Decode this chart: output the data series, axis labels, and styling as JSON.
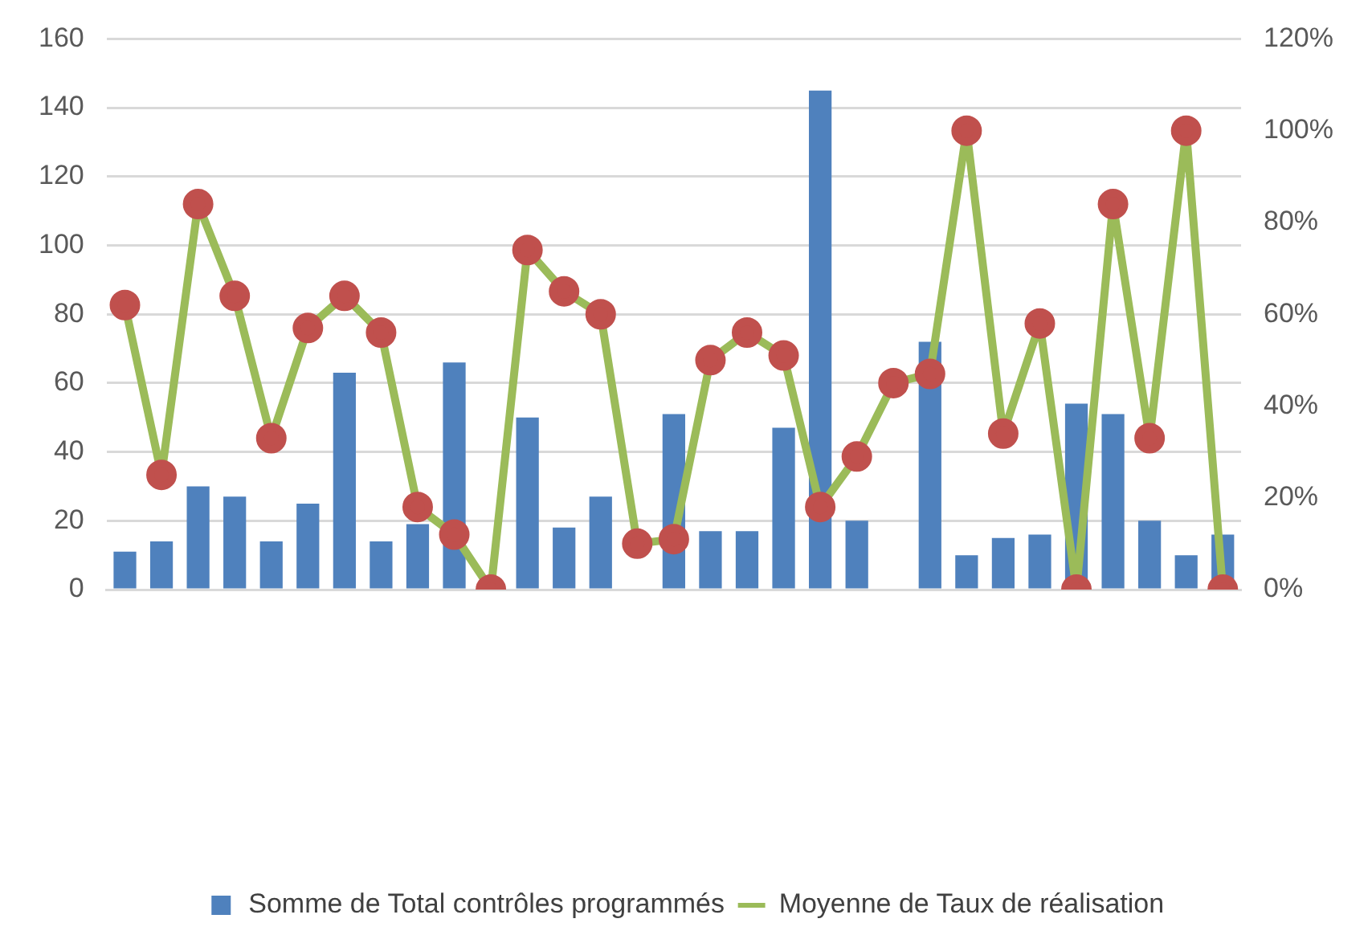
{
  "chart_data": {
    "type": "bar",
    "categories": [
      null,
      null,
      null,
      null,
      null,
      null,
      null,
      null,
      null,
      null,
      null,
      null,
      null,
      null,
      null,
      null,
      null,
      null,
      null,
      null,
      null,
      null,
      null,
      null,
      null,
      null,
      null,
      null,
      null,
      null,
      null
    ],
    "series": [
      {
        "name": "Somme de Total contrôles programmés",
        "color": "#4f81bd",
        "values": [
          11,
          14,
          30,
          27,
          14,
          25,
          63,
          14,
          19,
          66,
          0,
          50,
          18,
          27,
          null,
          51,
          17,
          17,
          47,
          145,
          20,
          null,
          72,
          10,
          15,
          16,
          54,
          51,
          20,
          10,
          16
        ]
      },
      {
        "name": "Moyenne de Taux de réalisation",
        "type": "line",
        "axis": "y2",
        "color": "#9bbb59",
        "colors": [
          "#c0504d",
          "#c0504d",
          "#c0504d",
          "#c0504d",
          "#c0504d",
          "#c0504d",
          "#c0504d",
          "#c0504d",
          "#c0504d",
          "#c0504d",
          "#c0504d",
          "#c0504d",
          "#c0504d",
          "#c0504d",
          "#c0504d",
          "#c0504d",
          "#c0504d",
          "#c0504d",
          "#c0504d",
          "#c0504d",
          "#c0504d",
          "#c0504d",
          "#c0504d",
          "#c0504d",
          "#c0504d",
          "#c0504d",
          "#c0504d",
          "#c0504d",
          "#c0504d",
          "#c0504d",
          "#c0504d"
        ],
        "values": [
          62,
          25,
          84,
          64,
          33,
          57,
          64,
          56,
          18,
          12,
          0,
          74,
          65,
          60,
          10,
          11,
          50,
          56,
          51,
          18,
          29,
          45,
          47,
          100,
          34,
          58,
          0,
          84,
          33,
          100,
          0
        ]
      }
    ],
    "ylim": [
      0,
      160
    ],
    "yticks": [
      0,
      20,
      40,
      60,
      80,
      100,
      120,
      140,
      160
    ],
    "y2lim": [
      0,
      120
    ],
    "y2ticks": [
      {
        "value": 0,
        "label": "0%"
      },
      {
        "value": 20,
        "label": "20%"
      },
      {
        "value": 40,
        "label": "40%"
      },
      {
        "value": 60,
        "label": "60%"
      },
      {
        "value": 80,
        "label": "80%"
      },
      {
        "value": 100,
        "label": "100%"
      },
      {
        "value": 120,
        "label": "120%"
      }
    ],
    "grid": "y",
    "legend": "bottom",
    "marker": "circle"
  }
}
